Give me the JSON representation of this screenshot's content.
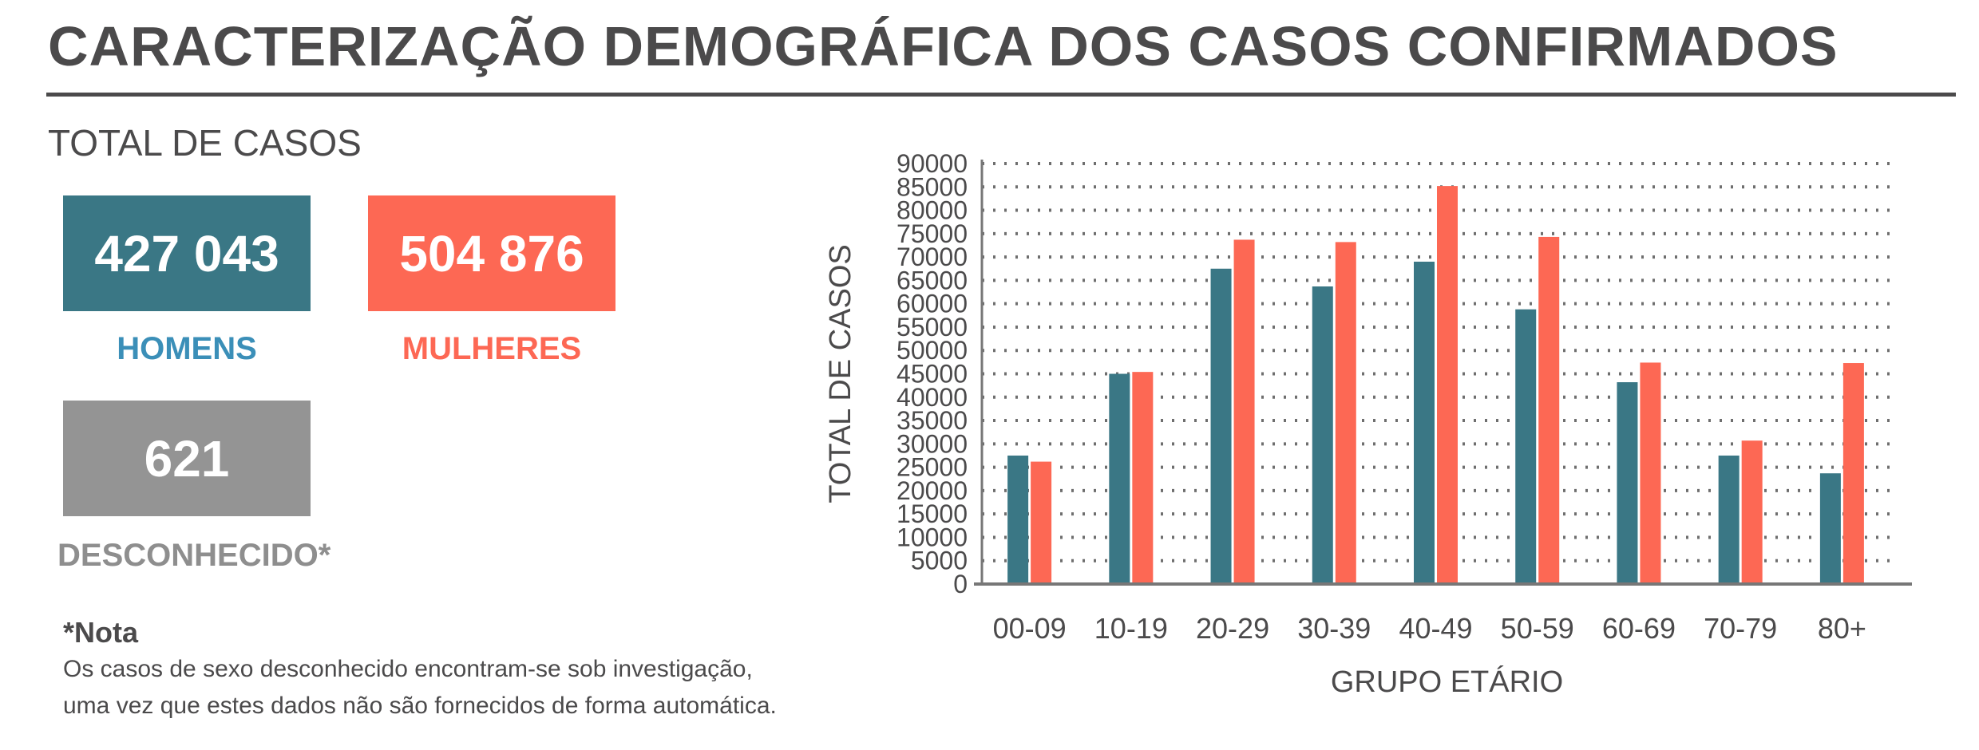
{
  "header": {
    "title": "CARACTERIZAÇÃO DEMOGRÁFICA DOS CASOS CONFIRMADOS",
    "subtitle": "TOTAL DE CASOS"
  },
  "totals": {
    "men": {
      "value": "427 043",
      "label": "HOMENS"
    },
    "women": {
      "value": "504 876",
      "label": "MULHERES"
    },
    "unknown": {
      "value": "621",
      "label": "DESCONHECIDO*"
    }
  },
  "note": {
    "title": "*Nota",
    "line1": "Os casos de sexo desconhecido encontram-se sob investigação,",
    "line2": "uma vez que estes dados não são fornecidos de forma automática."
  },
  "colors": {
    "men": "#3a7785",
    "women": "#fd6854",
    "unknown": "#949494",
    "text": "#4b4a4b"
  },
  "chart_data": {
    "type": "bar",
    "xlabel": "GRUPO ETÁRIO",
    "ylabel": "TOTAL DE CASOS",
    "ylim": [
      0,
      90000
    ],
    "yticks": [
      0,
      5000,
      10000,
      15000,
      20000,
      25000,
      30000,
      35000,
      40000,
      45000,
      50000,
      55000,
      60000,
      65000,
      70000,
      75000,
      80000,
      85000,
      90000
    ],
    "grid": true,
    "categories": [
      "00-09",
      "10-19",
      "20-29",
      "30-39",
      "40-49",
      "50-59",
      "60-69",
      "70-79",
      "80+"
    ],
    "series": [
      {
        "color": "#3a7785",
        "values": [
          27500,
          45000,
          67500,
          63700,
          69000,
          58800,
          43200,
          27500,
          23700
        ]
      },
      {
        "color": "#fd6854",
        "values": [
          26200,
          45400,
          73700,
          73200,
          85200,
          74300,
          47400,
          30700,
          47300
        ]
      }
    ]
  }
}
